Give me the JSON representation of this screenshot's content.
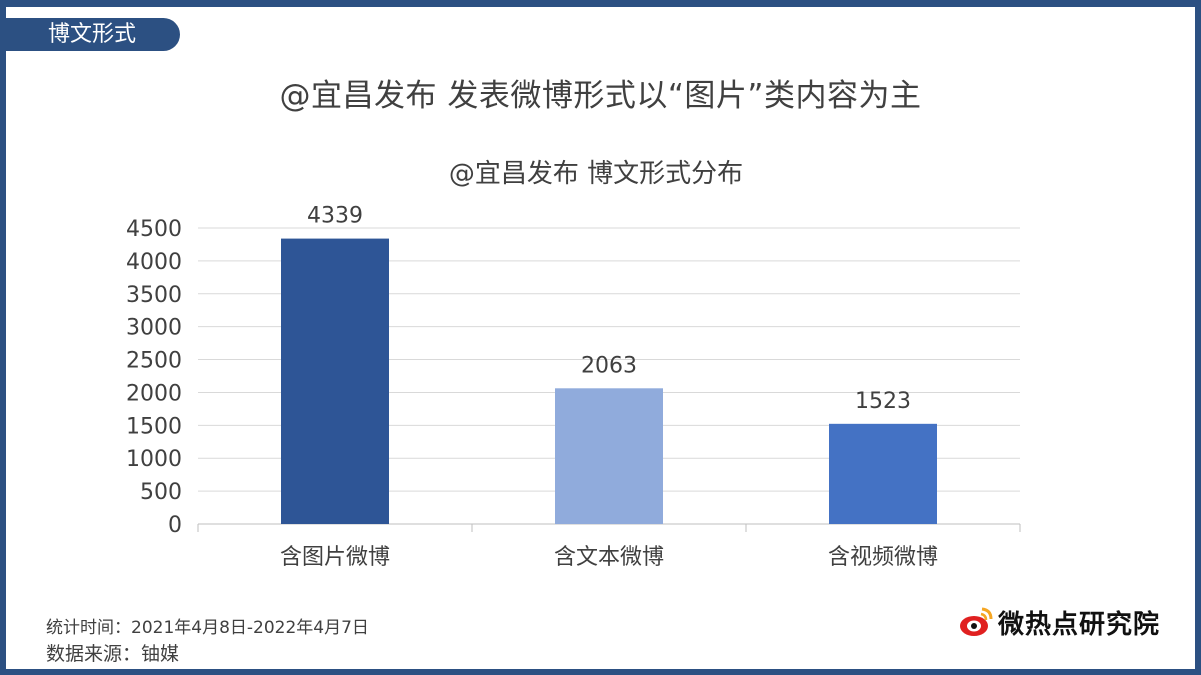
{
  "header": {
    "tag": "博文形式",
    "headline": "@宜昌发布 发表微博形式以“图片”类内容为主"
  },
  "chart_data": {
    "type": "bar",
    "title": "@宜昌发布 博文形式分布",
    "categories": [
      "含图片微博",
      "含文本微博",
      "含视频微博"
    ],
    "values": [
      4339,
      2063,
      1523
    ],
    "colors": [
      "#2e5596",
      "#90abdc",
      "#4472c4"
    ],
    "ylim": [
      0,
      4500
    ],
    "yticks": [
      0,
      500,
      1000,
      1500,
      2000,
      2500,
      3000,
      3500,
      4000,
      4500
    ],
    "grid": true,
    "xlabel": "",
    "ylabel": ""
  },
  "footer": {
    "period": "统计时间：2021年4月8日-2022年4月7日",
    "source": "数据来源：铀媒",
    "brand": "微热点研究院",
    "brand_icon": "weibo-eye-icon"
  }
}
